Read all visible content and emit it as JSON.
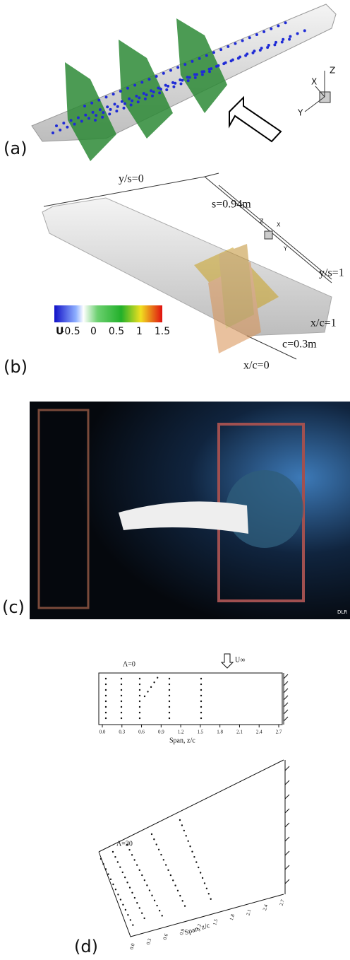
{
  "panels": [
    {
      "label": "(a)",
      "axes": [
        "X",
        "Y",
        "Z"
      ]
    },
    {
      "label": "(b)",
      "annotations": {
        "root": "y/s=0",
        "span": "s=0.94m",
        "tip": "y/s=1",
        "trailing": "x/c=1",
        "chord": "c=0.3m",
        "leading": "x/c=0"
      },
      "colorbar": {
        "label": "U",
        "ticks": [
          "-0.5",
          "0",
          "0.5",
          "1",
          "1.5"
        ]
      },
      "axes": [
        "Z",
        "X",
        "Y"
      ]
    },
    {
      "label": "(c)",
      "logo": "DLR"
    },
    {
      "label": "(d)",
      "plots": [
        {
          "sweep": "Λ=0",
          "freestream": "U∞",
          "xlabel": "Span, z/c",
          "ticks": [
            "0.0",
            "0.3",
            "0.6",
            "0.9",
            "1.2",
            "1.5",
            "1.8",
            "2.1",
            "2.4",
            "2.7"
          ]
        },
        {
          "sweep": "Λ=30",
          "xlabel": "Span, z/c",
          "ticks": [
            "0.0",
            "0.3",
            "0.6",
            "0.9",
            "1.2",
            "1.5",
            "1.8",
            "2.1",
            "2.4",
            "2.7"
          ]
        }
      ]
    }
  ]
}
